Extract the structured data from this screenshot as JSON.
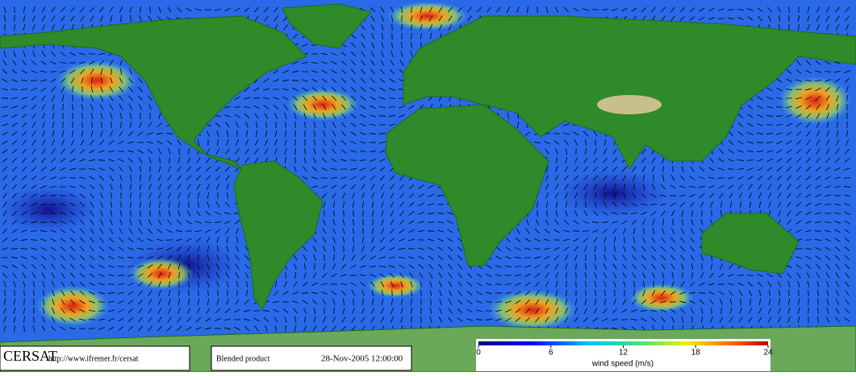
{
  "footer": {
    "logo": "CERSAT",
    "url": "http://www.ifremer.fr/cersat",
    "product": "Blended product",
    "date": "28-Nov-2005 12:00:00"
  },
  "colorbar": {
    "label": "wind speed (m/s)",
    "range": [
      0,
      24
    ],
    "ticks": [
      0,
      6,
      12,
      18,
      24
    ]
  }
}
